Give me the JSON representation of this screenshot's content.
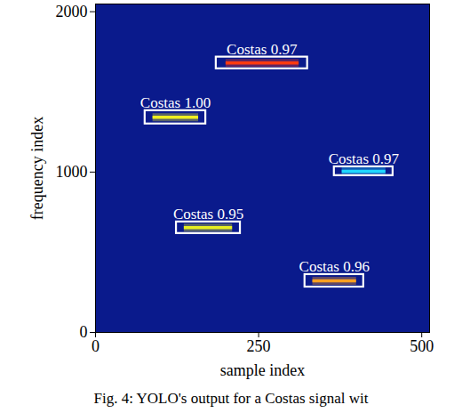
{
  "chart_data": {
    "type": "heatmap",
    "xlabel": "sample index",
    "ylabel": "frequency index",
    "caption": "Fig. 4: YOLO's output for a Costas signal wit",
    "xlim": [
      0,
      512
    ],
    "ylim": [
      0,
      2048
    ],
    "xticks": [
      0,
      250,
      500
    ],
    "yticks": [
      0,
      1000,
      2000
    ],
    "grid": false,
    "color": "#0a1a8c",
    "detections": [
      {
        "label": "Costas 0.97",
        "box": {
          "x": [
            185,
            325
          ],
          "y": [
            1644,
            1717
          ]
        },
        "signal": {
          "x": [
            200,
            312
          ],
          "y": 1680
        },
        "color": "#ff3a10"
      },
      {
        "label": "Costas 1.00",
        "box": {
          "x": [
            76,
            169
          ],
          "y": [
            1300,
            1383
          ]
        },
        "signal": {
          "x": [
            88,
            158
          ],
          "y": 1342
        },
        "color": "#f0f020"
      },
      {
        "label": "Costas 0.97",
        "box": {
          "x": [
            366,
            456
          ],
          "y": [
            978,
            1033
          ]
        },
        "signal": {
          "x": [
            378,
            445
          ],
          "y": 1005
        },
        "color": "#20d8ff"
      },
      {
        "label": "Costas 0.95",
        "box": {
          "x": [
            124,
            222
          ],
          "y": [
            617,
            689
          ]
        },
        "signal": {
          "x": [
            136,
            210
          ],
          "y": 653
        },
        "color": "#e8f020"
      },
      {
        "label": "Costas 0.96",
        "box": {
          "x": [
            321,
            411
          ],
          "y": [
            283,
            361
          ]
        },
        "signal": {
          "x": [
            333,
            400
          ],
          "y": 322
        },
        "color": "#ffa020"
      }
    ]
  }
}
